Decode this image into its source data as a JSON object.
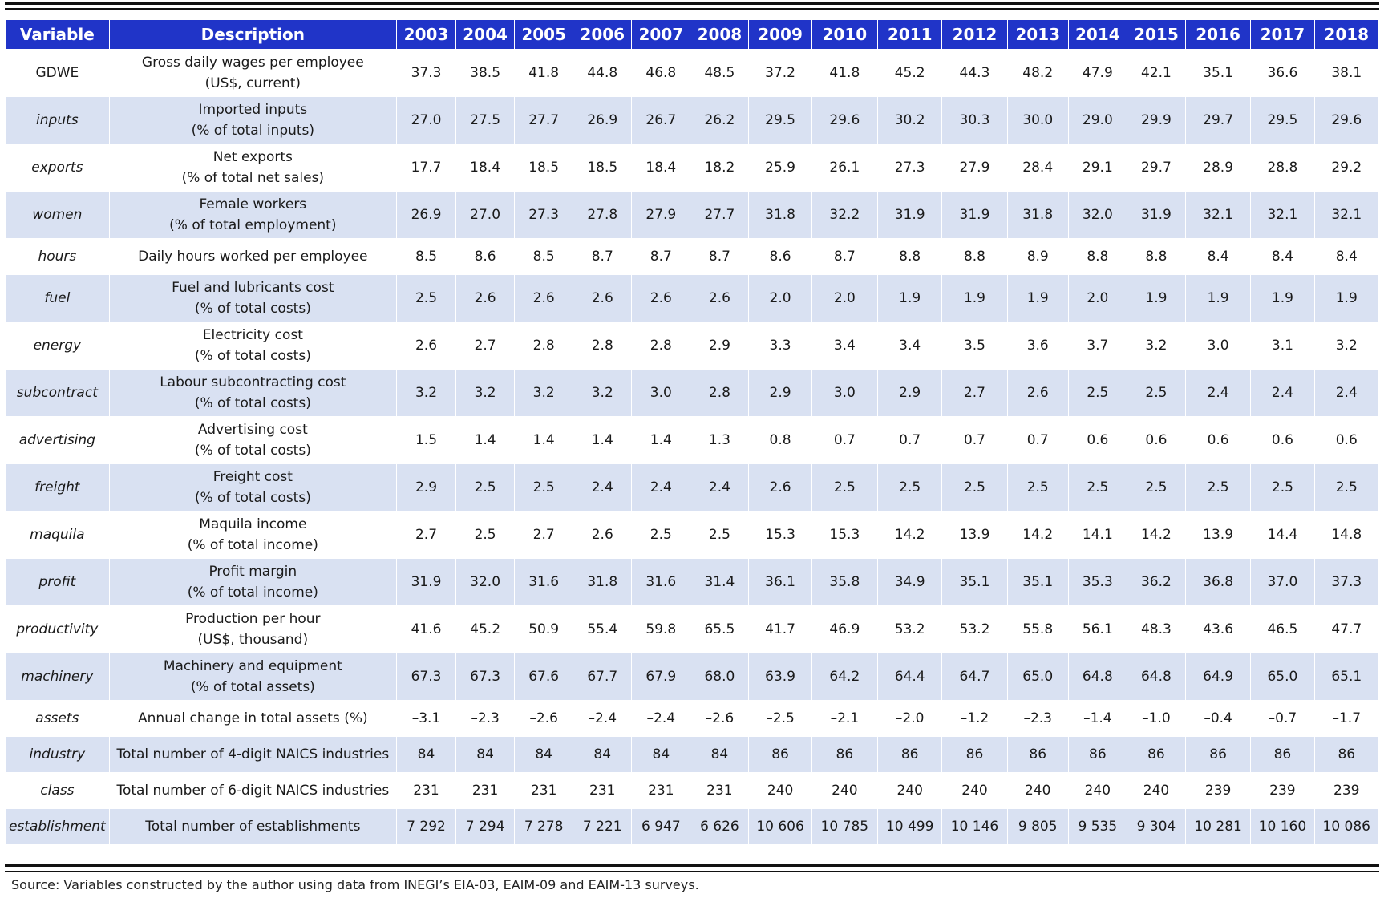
{
  "table": {
    "headers": {
      "variable": "Variable",
      "description": "Description",
      "years": [
        "2003",
        "2004",
        "2005",
        "2006",
        "2007",
        "2008",
        "2009",
        "2010",
        "2011",
        "2012",
        "2013",
        "2014",
        "2015",
        "2016",
        "2017",
        "2018"
      ]
    },
    "rows": [
      {
        "variable": "GDWE",
        "italic": false,
        "desc": [
          "Gross daily wages per employee",
          "(US$, current)"
        ],
        "values": [
          "37.3",
          "38.5",
          "41.8",
          "44.8",
          "46.8",
          "48.5",
          "37.2",
          "41.8",
          "45.2",
          "44.3",
          "48.2",
          "47.9",
          "42.1",
          "35.1",
          "36.6",
          "38.1"
        ]
      },
      {
        "variable": "inputs",
        "italic": true,
        "desc": [
          "Imported inputs",
          "(% of total inputs)"
        ],
        "values": [
          "27.0",
          "27.5",
          "27.7",
          "26.9",
          "26.7",
          "26.2",
          "29.5",
          "29.6",
          "30.2",
          "30.3",
          "30.0",
          "29.0",
          "29.9",
          "29.7",
          "29.5",
          "29.6"
        ]
      },
      {
        "variable": "exports",
        "italic": true,
        "desc": [
          "Net exports",
          "(% of total net sales)"
        ],
        "values": [
          "17.7",
          "18.4",
          "18.5",
          "18.5",
          "18.4",
          "18.2",
          "25.9",
          "26.1",
          "27.3",
          "27.9",
          "28.4",
          "29.1",
          "29.7",
          "28.9",
          "28.8",
          "29.2"
        ]
      },
      {
        "variable": "women",
        "italic": true,
        "desc": [
          "Female workers",
          "(% of total employment)"
        ],
        "values": [
          "26.9",
          "27.0",
          "27.3",
          "27.8",
          "27.9",
          "27.7",
          "31.8",
          "32.2",
          "31.9",
          "31.9",
          "31.8",
          "32.0",
          "31.9",
          "32.1",
          "32.1",
          "32.1"
        ]
      },
      {
        "variable": "hours",
        "italic": true,
        "desc": [
          "Daily hours worked per employee"
        ],
        "values": [
          "8.5",
          "8.6",
          "8.5",
          "8.7",
          "8.7",
          "8.7",
          "8.6",
          "8.7",
          "8.8",
          "8.8",
          "8.9",
          "8.8",
          "8.8",
          "8.4",
          "8.4",
          "8.4"
        ]
      },
      {
        "variable": "fuel",
        "italic": true,
        "desc": [
          "Fuel and lubricants cost",
          "(% of total costs)"
        ],
        "values": [
          "2.5",
          "2.6",
          "2.6",
          "2.6",
          "2.6",
          "2.6",
          "2.0",
          "2.0",
          "1.9",
          "1.9",
          "1.9",
          "2.0",
          "1.9",
          "1.9",
          "1.9",
          "1.9"
        ]
      },
      {
        "variable": "energy",
        "italic": true,
        "desc": [
          "Electricity cost",
          "(% of total costs)"
        ],
        "values": [
          "2.6",
          "2.7",
          "2.8",
          "2.8",
          "2.8",
          "2.9",
          "3.3",
          "3.4",
          "3.4",
          "3.5",
          "3.6",
          "3.7",
          "3.2",
          "3.0",
          "3.1",
          "3.2"
        ]
      },
      {
        "variable": "subcontract",
        "italic": true,
        "desc": [
          "Labour subcontracting cost",
          "(% of total costs)"
        ],
        "values": [
          "3.2",
          "3.2",
          "3.2",
          "3.2",
          "3.0",
          "2.8",
          "2.9",
          "3.0",
          "2.9",
          "2.7",
          "2.6",
          "2.5",
          "2.5",
          "2.4",
          "2.4",
          "2.4"
        ]
      },
      {
        "variable": "advertising",
        "italic": true,
        "desc": [
          "Advertising cost",
          "(% of total costs)"
        ],
        "values": [
          "1.5",
          "1.4",
          "1.4",
          "1.4",
          "1.4",
          "1.3",
          "0.8",
          "0.7",
          "0.7",
          "0.7",
          "0.7",
          "0.6",
          "0.6",
          "0.6",
          "0.6",
          "0.6"
        ]
      },
      {
        "variable": "freight",
        "italic": true,
        "desc": [
          "Freight cost",
          "(% of total costs)"
        ],
        "values": [
          "2.9",
          "2.5",
          "2.5",
          "2.4",
          "2.4",
          "2.4",
          "2.6",
          "2.5",
          "2.5",
          "2.5",
          "2.5",
          "2.5",
          "2.5",
          "2.5",
          "2.5",
          "2.5"
        ]
      },
      {
        "variable": "maquila",
        "italic": true,
        "desc": [
          "Maquila income",
          "(% of total income)"
        ],
        "values": [
          "2.7",
          "2.5",
          "2.7",
          "2.6",
          "2.5",
          "2.5",
          "15.3",
          "15.3",
          "14.2",
          "13.9",
          "14.2",
          "14.1",
          "14.2",
          "13.9",
          "14.4",
          "14.8"
        ]
      },
      {
        "variable": "profit",
        "italic": true,
        "desc": [
          "Profit margin",
          "(% of total income)"
        ],
        "values": [
          "31.9",
          "32.0",
          "31.6",
          "31.8",
          "31.6",
          "31.4",
          "36.1",
          "35.8",
          "34.9",
          "35.1",
          "35.1",
          "35.3",
          "36.2",
          "36.8",
          "37.0",
          "37.3"
        ]
      },
      {
        "variable": "productivity",
        "italic": true,
        "desc": [
          "Production per hour",
          "(US$, thousand)"
        ],
        "values": [
          "41.6",
          "45.2",
          "50.9",
          "55.4",
          "59.8",
          "65.5",
          "41.7",
          "46.9",
          "53.2",
          "53.2",
          "55.8",
          "56.1",
          "48.3",
          "43.6",
          "46.5",
          "47.7"
        ]
      },
      {
        "variable": "machinery",
        "italic": true,
        "desc": [
          "Machinery and equipment",
          "(% of total assets)"
        ],
        "values": [
          "67.3",
          "67.3",
          "67.6",
          "67.7",
          "67.9",
          "68.0",
          "63.9",
          "64.2",
          "64.4",
          "64.7",
          "65.0",
          "64.8",
          "64.8",
          "64.9",
          "65.0",
          "65.1"
        ]
      },
      {
        "variable": "assets",
        "italic": true,
        "desc": [
          "Annual change in total assets (%)"
        ],
        "values": [
          "–3.1",
          "–2.3",
          "–2.6",
          "–2.4",
          "–2.4",
          "–2.6",
          "–2.5",
          "–2.1",
          "–2.0",
          "–1.2",
          "–2.3",
          "–1.4",
          "–1.0",
          "–0.4",
          "–0.7",
          "–1.7"
        ]
      },
      {
        "variable": "industry",
        "italic": true,
        "desc": [
          "Total number of 4-digit NAICS industries"
        ],
        "values": [
          "84",
          "84",
          "84",
          "84",
          "84",
          "84",
          "86",
          "86",
          "86",
          "86",
          "86",
          "86",
          "86",
          "86",
          "86",
          "86"
        ]
      },
      {
        "variable": "class",
        "italic": true,
        "desc": [
          "Total number of 6-digit NAICS industries"
        ],
        "values": [
          "231",
          "231",
          "231",
          "231",
          "231",
          "231",
          "240",
          "240",
          "240",
          "240",
          "240",
          "240",
          "240",
          "239",
          "239",
          "239"
        ]
      },
      {
        "variable": "establishment",
        "italic": true,
        "desc": [
          "Total number of establishments"
        ],
        "values": [
          "7 292",
          "7 294",
          "7 278",
          "7 221",
          "6 947",
          "6 626",
          "10 606",
          "10 785",
          "10 499",
          "10 146",
          "9 805",
          "9 535",
          "9 304",
          "10 281",
          "10 160",
          "10 086"
        ]
      }
    ]
  },
  "source_note": "Source: Variables constructed by the author using data from INEGI’s EIA-03, EAIM-09 and EAIM-13 surveys.",
  "colors": {
    "header_bg": "#2034c8",
    "band_bg": "#d9e1f2",
    "header_text": "#ffffff"
  }
}
